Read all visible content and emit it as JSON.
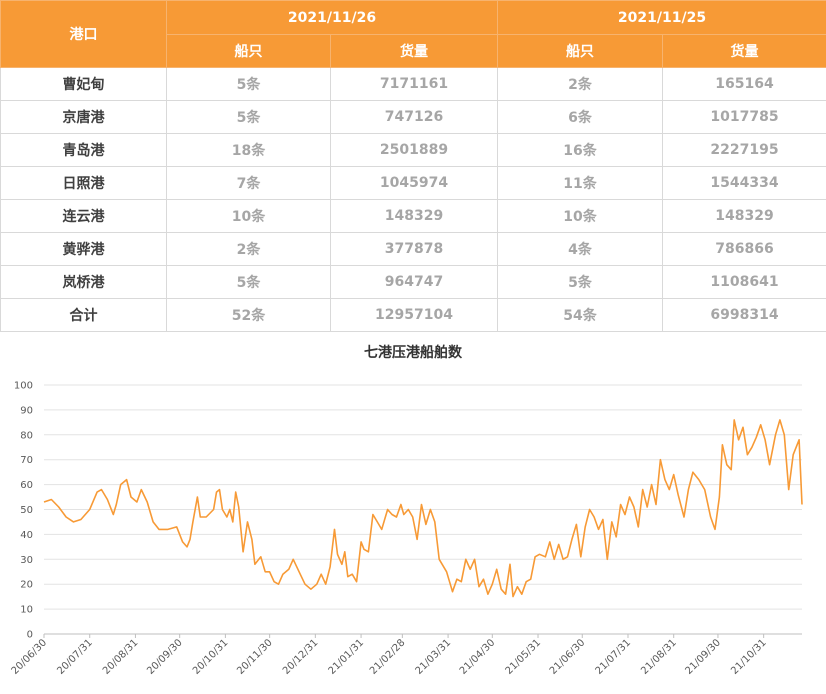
{
  "table": {
    "port_header": "港口",
    "date1": "2021/11/26",
    "date2": "2021/11/25",
    "ships_header": "船只",
    "cargo_header": "货量",
    "rows": [
      {
        "port": "曹妃甸",
        "ships1": "5条",
        "cargo1": "7171161",
        "ships2": "2条",
        "cargo2": "165164"
      },
      {
        "port": "京唐港",
        "ships1": "5条",
        "cargo1": "747126",
        "ships2": "6条",
        "cargo2": "1017785"
      },
      {
        "port": "青岛港",
        "ships1": "18条",
        "cargo1": "2501889",
        "ships2": "16条",
        "cargo2": "2227195"
      },
      {
        "port": "日照港",
        "ships1": "7条",
        "cargo1": "1045974",
        "ships2": "11条",
        "cargo2": "1544334"
      },
      {
        "port": "连云港",
        "ships1": "10条",
        "cargo1": "148329",
        "ships2": "10条",
        "cargo2": "148329"
      },
      {
        "port": "黄骅港",
        "ships1": "2条",
        "cargo1": "377878",
        "ships2": "4条",
        "cargo2": "786866"
      },
      {
        "port": "岚桥港",
        "ships1": "5条",
        "cargo1": "964747",
        "ships2": "5条",
        "cargo2": "1108641"
      },
      {
        "port": "合计",
        "ships1": "52条",
        "cargo1": "12957104",
        "ships2": "54条",
        "cargo2": "6998314"
      }
    ]
  },
  "chart_data": {
    "type": "line",
    "title": "七港压港船舶数",
    "line_color": "#f79a36",
    "grid": true,
    "legend": false,
    "ylim": [
      0,
      100
    ],
    "y_ticks": [
      0,
      10,
      20,
      30,
      40,
      50,
      60,
      70,
      80,
      90,
      100
    ],
    "x_tick_labels": [
      "20/06/30",
      "20/07/31",
      "20/08/31",
      "20/09/30",
      "20/10/31",
      "20/11/30",
      "20/12/31",
      "21/01/31",
      "21/02/28",
      "21/03/31",
      "21/04/30",
      "21/05/31",
      "21/06/30",
      "21/07/31",
      "21/08/31",
      "21/09/30",
      "21/10/31"
    ],
    "x_range": [
      "2020-06-30",
      "2021-11-26"
    ],
    "series": [
      {
        "points": [
          [
            "2020-06-30",
            53
          ],
          [
            "2020-07-05",
            54
          ],
          [
            "2020-07-10",
            51
          ],
          [
            "2020-07-15",
            47
          ],
          [
            "2020-07-20",
            45
          ],
          [
            "2020-07-25",
            46
          ],
          [
            "2020-07-31",
            50
          ],
          [
            "2020-08-05",
            57
          ],
          [
            "2020-08-08",
            58
          ],
          [
            "2020-08-12",
            54
          ],
          [
            "2020-08-16",
            48
          ],
          [
            "2020-08-18",
            52
          ],
          [
            "2020-08-21",
            60
          ],
          [
            "2020-08-25",
            62
          ],
          [
            "2020-08-28",
            55
          ],
          [
            "2020-09-01",
            53
          ],
          [
            "2020-09-04",
            58
          ],
          [
            "2020-09-08",
            53
          ],
          [
            "2020-09-12",
            45
          ],
          [
            "2020-09-16",
            42
          ],
          [
            "2020-09-22",
            42
          ],
          [
            "2020-09-28",
            43
          ],
          [
            "2020-10-02",
            37
          ],
          [
            "2020-10-05",
            35
          ],
          [
            "2020-10-07",
            38
          ],
          [
            "2020-10-09",
            45
          ],
          [
            "2020-10-12",
            55
          ],
          [
            "2020-10-14",
            47
          ],
          [
            "2020-10-18",
            47
          ],
          [
            "2020-10-23",
            50
          ],
          [
            "2020-10-25",
            57
          ],
          [
            "2020-10-27",
            58
          ],
          [
            "2020-10-29",
            50
          ],
          [
            "2020-11-01",
            47
          ],
          [
            "2020-11-03",
            50
          ],
          [
            "2020-11-05",
            45
          ],
          [
            "2020-11-07",
            57
          ],
          [
            "2020-11-09",
            51
          ],
          [
            "2020-11-12",
            33
          ],
          [
            "2020-11-15",
            45
          ],
          [
            "2020-11-18",
            38
          ],
          [
            "2020-11-20",
            28
          ],
          [
            "2020-11-24",
            31
          ],
          [
            "2020-11-27",
            25
          ],
          [
            "2020-11-30",
            25
          ],
          [
            "2020-12-03",
            21
          ],
          [
            "2020-12-06",
            20
          ],
          [
            "2020-12-09",
            24
          ],
          [
            "2020-12-13",
            26
          ],
          [
            "2020-12-16",
            30
          ],
          [
            "2020-12-20",
            25
          ],
          [
            "2020-12-24",
            20
          ],
          [
            "2020-12-28",
            18
          ],
          [
            "2021-01-01",
            20
          ],
          [
            "2021-01-04",
            24
          ],
          [
            "2021-01-07",
            20
          ],
          [
            "2021-01-10",
            27
          ],
          [
            "2021-01-13",
            42
          ],
          [
            "2021-01-15",
            32
          ],
          [
            "2021-01-18",
            28
          ],
          [
            "2021-01-20",
            33
          ],
          [
            "2021-01-22",
            23
          ],
          [
            "2021-01-25",
            24
          ],
          [
            "2021-01-28",
            21
          ],
          [
            "2021-01-31",
            37
          ],
          [
            "2021-02-02",
            34
          ],
          [
            "2021-02-05",
            33
          ],
          [
            "2021-02-08",
            48
          ],
          [
            "2021-02-11",
            45
          ],
          [
            "2021-02-14",
            42
          ],
          [
            "2021-02-18",
            50
          ],
          [
            "2021-02-21",
            48
          ],
          [
            "2021-02-24",
            47
          ],
          [
            "2021-02-27",
            52
          ],
          [
            "2021-03-01",
            48
          ],
          [
            "2021-03-04",
            50
          ],
          [
            "2021-03-07",
            47
          ],
          [
            "2021-03-10",
            38
          ],
          [
            "2021-03-13",
            52
          ],
          [
            "2021-03-16",
            44
          ],
          [
            "2021-03-19",
            50
          ],
          [
            "2021-03-22",
            45
          ],
          [
            "2021-03-25",
            30
          ],
          [
            "2021-03-30",
            25
          ],
          [
            "2021-04-03",
            17
          ],
          [
            "2021-04-06",
            22
          ],
          [
            "2021-04-09",
            21
          ],
          [
            "2021-04-12",
            30
          ],
          [
            "2021-04-15",
            26
          ],
          [
            "2021-04-18",
            30
          ],
          [
            "2021-04-21",
            19
          ],
          [
            "2021-04-24",
            22
          ],
          [
            "2021-04-27",
            16
          ],
          [
            "2021-04-30",
            20
          ],
          [
            "2021-05-03",
            26
          ],
          [
            "2021-05-06",
            18
          ],
          [
            "2021-05-09",
            16
          ],
          [
            "2021-05-12",
            28
          ],
          [
            "2021-05-14",
            15
          ],
          [
            "2021-05-17",
            19
          ],
          [
            "2021-05-20",
            16
          ],
          [
            "2021-05-23",
            21
          ],
          [
            "2021-05-26",
            22
          ],
          [
            "2021-05-29",
            31
          ],
          [
            "2021-06-01",
            32
          ],
          [
            "2021-06-05",
            31
          ],
          [
            "2021-06-08",
            37
          ],
          [
            "2021-06-11",
            30
          ],
          [
            "2021-06-14",
            36
          ],
          [
            "2021-06-17",
            30
          ],
          [
            "2021-06-20",
            31
          ],
          [
            "2021-06-23",
            38
          ],
          [
            "2021-06-26",
            44
          ],
          [
            "2021-06-29",
            31
          ],
          [
            "2021-07-02",
            43
          ],
          [
            "2021-07-05",
            50
          ],
          [
            "2021-07-08",
            47
          ],
          [
            "2021-07-11",
            42
          ],
          [
            "2021-07-14",
            46
          ],
          [
            "2021-07-17",
            30
          ],
          [
            "2021-07-20",
            45
          ],
          [
            "2021-07-23",
            39
          ],
          [
            "2021-07-26",
            52
          ],
          [
            "2021-07-29",
            48
          ],
          [
            "2021-08-01",
            55
          ],
          [
            "2021-08-04",
            51
          ],
          [
            "2021-08-07",
            43
          ],
          [
            "2021-08-10",
            58
          ],
          [
            "2021-08-13",
            51
          ],
          [
            "2021-08-16",
            60
          ],
          [
            "2021-08-19",
            52
          ],
          [
            "2021-08-22",
            70
          ],
          [
            "2021-08-25",
            62
          ],
          [
            "2021-08-28",
            58
          ],
          [
            "2021-08-31",
            64
          ],
          [
            "2021-09-03",
            56
          ],
          [
            "2021-09-07",
            47
          ],
          [
            "2021-09-10",
            58
          ],
          [
            "2021-09-13",
            65
          ],
          [
            "2021-09-17",
            62
          ],
          [
            "2021-09-21",
            58
          ],
          [
            "2021-09-25",
            47
          ],
          [
            "2021-09-28",
            42
          ],
          [
            "2021-10-01",
            55
          ],
          [
            "2021-10-03",
            76
          ],
          [
            "2021-10-06",
            68
          ],
          [
            "2021-10-09",
            66
          ],
          [
            "2021-10-11",
            86
          ],
          [
            "2021-10-14",
            78
          ],
          [
            "2021-10-17",
            83
          ],
          [
            "2021-10-20",
            72
          ],
          [
            "2021-10-23",
            75
          ],
          [
            "2021-10-26",
            79
          ],
          [
            "2021-10-29",
            84
          ],
          [
            "2021-11-01",
            78
          ],
          [
            "2021-11-04",
            68
          ],
          [
            "2021-11-08",
            80
          ],
          [
            "2021-11-11",
            86
          ],
          [
            "2021-11-14",
            80
          ],
          [
            "2021-11-17",
            58
          ],
          [
            "2021-11-20",
            72
          ],
          [
            "2021-11-24",
            78
          ],
          [
            "2021-11-26",
            52
          ]
        ]
      }
    ]
  }
}
